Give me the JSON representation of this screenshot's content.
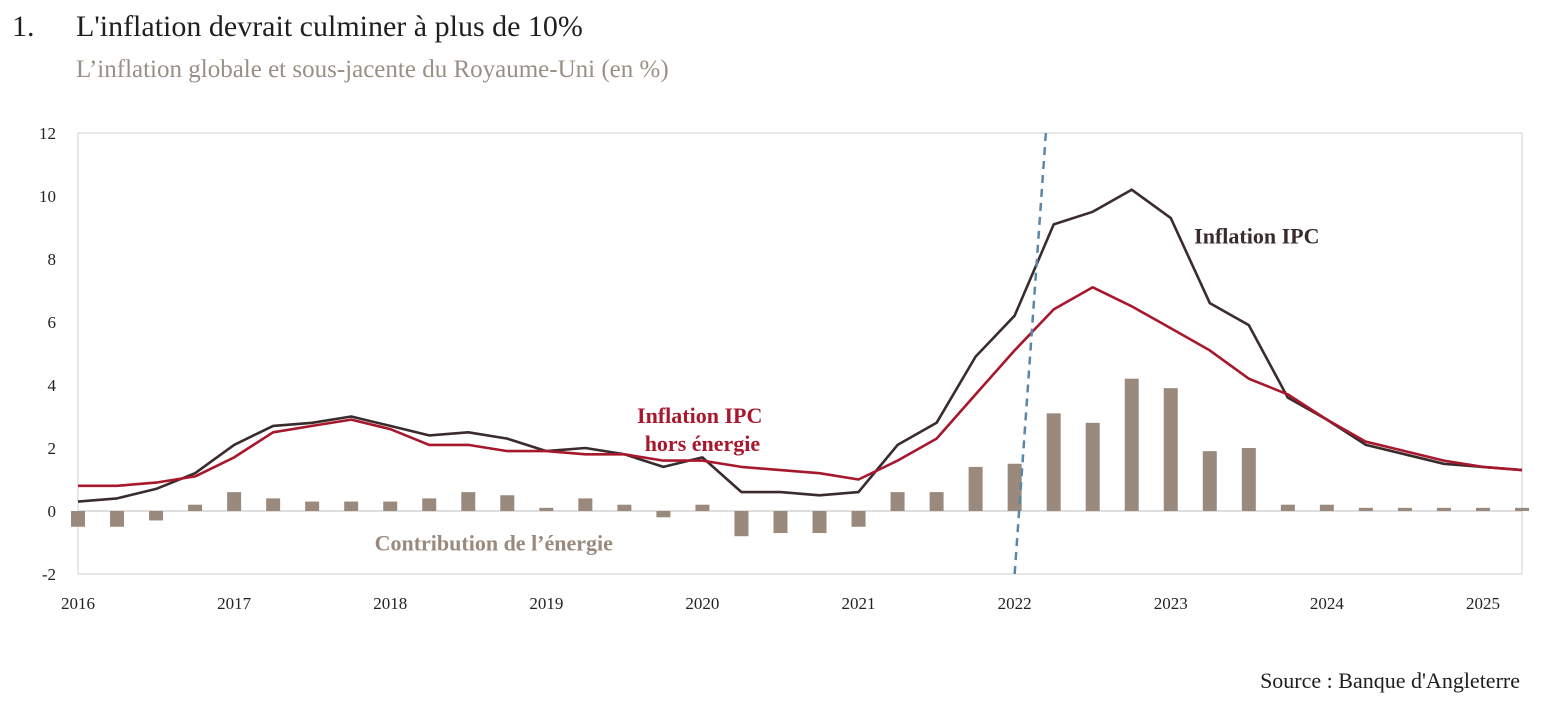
{
  "header": {
    "number": "1.",
    "title": "L'inflation devrait culminer à plus de 10%",
    "subtitle": "L’inflation globale et sous-jacente du Royaume-Uni (en %)"
  },
  "source": "Source : Banque d'Angleterre",
  "chart_data": {
    "type": "line",
    "xlim": [
      2016,
      2025.25
    ],
    "ylim": [
      -2,
      12
    ],
    "yticks": [
      -2,
      0,
      2,
      4,
      6,
      8,
      10,
      12
    ],
    "xticks": [
      2016,
      2017,
      2018,
      2019,
      2020,
      2021,
      2022,
      2023,
      2024,
      2025
    ],
    "x": [
      2016.0,
      2016.25,
      2016.5,
      2016.75,
      2017.0,
      2017.25,
      2017.5,
      2017.75,
      2018.0,
      2018.25,
      2018.5,
      2018.75,
      2019.0,
      2019.25,
      2019.5,
      2019.75,
      2020.0,
      2020.25,
      2020.5,
      2020.75,
      2021.0,
      2021.25,
      2021.5,
      2021.75,
      2022.0,
      2022.25,
      2022.5,
      2022.75,
      2023.0,
      2023.25,
      2023.5,
      2023.75,
      2024.0,
      2024.25,
      2024.5,
      2024.75,
      2025.0,
      2025.25
    ],
    "series": [
      {
        "name": "Inflation IPC",
        "kind": "line",
        "color": "#3a2c2c",
        "values": [
          0.3,
          0.4,
          0.7,
          1.2,
          2.1,
          2.7,
          2.8,
          3.0,
          2.7,
          2.4,
          2.5,
          2.3,
          1.9,
          2.0,
          1.8,
          1.4,
          1.7,
          0.6,
          0.6,
          0.5,
          0.6,
          2.1,
          2.8,
          4.9,
          6.2,
          9.1,
          9.5,
          10.2,
          9.3,
          6.6,
          5.9,
          3.6,
          2.9,
          2.1,
          1.8,
          1.5,
          1.4,
          1.3
        ]
      },
      {
        "name": "Inflation IPC hors énergie",
        "label_lines": [
          "Inflation IPC",
          "hors énergie"
        ],
        "kind": "line",
        "color": "#a8182c",
        "values": [
          0.8,
          0.8,
          0.9,
          1.1,
          1.7,
          2.5,
          2.7,
          2.9,
          2.6,
          2.1,
          2.1,
          1.9,
          1.9,
          1.8,
          1.8,
          1.6,
          1.6,
          1.4,
          1.3,
          1.2,
          1.0,
          1.6,
          2.3,
          3.7,
          5.1,
          6.4,
          7.1,
          6.5,
          5.8,
          5.1,
          4.2,
          3.7,
          2.9,
          2.2,
          1.9,
          1.6,
          1.4,
          1.3
        ]
      },
      {
        "name": "Contribution de l’énergie",
        "kind": "bar",
        "color": "#9a8a7d",
        "values": [
          -0.5,
          -0.5,
          -0.3,
          0.2,
          0.6,
          0.4,
          0.3,
          0.3,
          0.3,
          0.4,
          0.6,
          0.5,
          0.1,
          0.4,
          0.2,
          -0.2,
          0.2,
          -0.8,
          -0.7,
          -0.7,
          -0.5,
          0.6,
          0.6,
          1.4,
          1.5,
          3.1,
          2.8,
          4.2,
          3.9,
          1.9,
          2.0,
          0.2,
          0.2,
          0.1,
          0.1,
          0.1,
          0.1,
          0.1
        ]
      }
    ],
    "forecast_line": {
      "x_bottom": 2022.0,
      "x_top": 2022.2,
      "color": "#5a86a8"
    },
    "annotations": [
      {
        "text": "Inflation IPC",
        "color": "#3a2c2c",
        "x": 2023.15,
        "y": 8.5
      },
      {
        "text": "Contribution de l’énergie",
        "color": "#9a8a7d",
        "x": 2017.9,
        "y": -1.0
      }
    ]
  }
}
